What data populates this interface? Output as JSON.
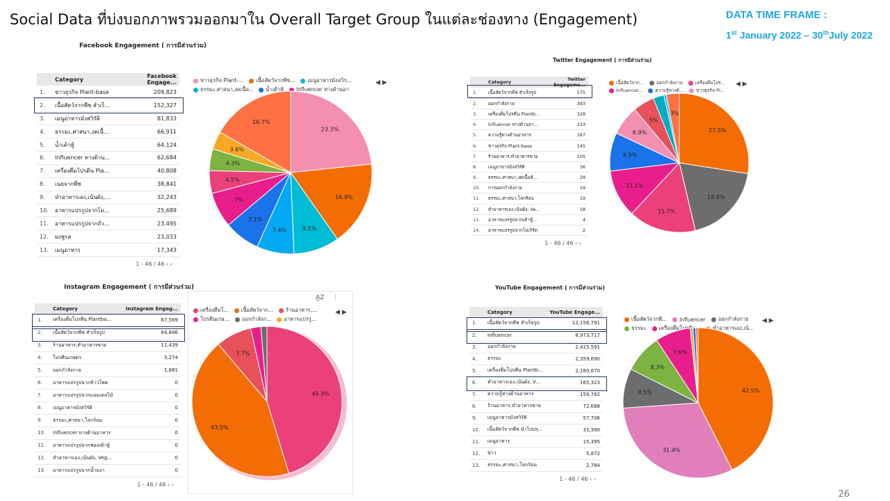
{
  "header": {
    "title": "Social Data ที่บ่งบอกภาพรวมออกมาใน Overall Target Group ในแต่ละช่องทาง (Engagement)",
    "time_frame_label": "DATA TIME FRAME :",
    "time_frame_start": "1",
    "time_frame_start_sup": "st",
    "time_frame_mid": " January 2022 – 30",
    "time_frame_end_sup": "th",
    "time_frame_end": "July 2022"
  },
  "page_number": "26",
  "chart_data": [
    {
      "id": "fb",
      "type": "pie",
      "title": "Facebook Engagement ( การมีส่วนร่วม)",
      "table_headers": [
        "Category",
        "Facebook Engage..."
      ],
      "table": [
        [
          "1.",
          "ข่าวธุรกิจ Plant-base",
          "209,823"
        ],
        [
          "2.",
          "เนื้อสัตว์จากพืช สำเร็จรูป",
          "152,327"
        ],
        [
          "3.",
          "เมนูอาหารมังสวิรัติ",
          "81,833"
        ],
        [
          "4.",
          "ธรรมะ,ศาสนา,งดเนื้อสั...",
          "66,911"
        ],
        [
          "5.",
          "น้ำเต้าหู้",
          "64,124"
        ],
        [
          "6.",
          "Influencer ทางด้านอา...",
          "62,684"
        ],
        [
          "7.",
          "เครื่องดื่มโปรตีน Plantb...",
          "40,808"
        ],
        [
          "8.",
          "เนยจากพืช",
          "38,841"
        ],
        [
          "9.",
          "ทำอาหารเอง,เน้นผัง, Ve...",
          "32,243"
        ],
        [
          "10.",
          "อาหารแปรรูปจากโยเกิร์ต",
          "25,689"
        ],
        [
          "11.",
          "อาหารแปรรูปจากถั่วลูกไก่",
          "23,495"
        ],
        [
          "12.",
          "ผงชูรส",
          "23,033"
        ],
        [
          "13.",
          "เมนูอาหาร",
          "17,343"
        ]
      ],
      "pager": "1 - 46 / 46",
      "highlight_rows": [
        1
      ],
      "legend": [
        "ข่าวธุรกิจ Plant-...",
        "เนื้อสัตว์จากพืช...",
        "เมนูอาหารมังสวิร...",
        "ธรรมะ,ศาสนา,งดเนื้อ...",
        "น้ำเต้าหู้",
        "Influencer ทางด้านอา..."
      ],
      "slices": [
        {
          "value": 23.3,
          "label": "23.3%",
          "color": "#f48fb1"
        },
        {
          "value": 16.9,
          "label": "16.9%",
          "color": "#f46d04"
        },
        {
          "value": 9.1,
          "label": "9.1%",
          "color": "#00bcd4"
        },
        {
          "value": 7.4,
          "label": "7.4%",
          "color": "#03a9f4"
        },
        {
          "value": 7.1,
          "label": "7.1%",
          "color": "#1a73e8"
        },
        {
          "value": 7.0,
          "label": "7%",
          "color": "#e91e8c"
        },
        {
          "value": 4.5,
          "label": "4.5%",
          "color": "#ec407a"
        },
        {
          "value": 4.3,
          "label": "4.3%",
          "color": "#7cb342"
        },
        {
          "value": 3.6,
          "label": "3.6%",
          "color": "#f9a825"
        },
        {
          "value": 16.7,
          "label": "16.7%",
          "color": "#ff7043"
        }
      ]
    },
    {
      "id": "tw",
      "type": "pie",
      "title": "Twitter  Engagement ( การมีส่วนร่วม)",
      "table_headers": [
        "Category",
        "Twitter Engageme..."
      ],
      "table": [
        [
          "1.",
          "เนื้อสัตว์จากพืช สำเร็จรูป",
          "575"
        ],
        [
          "2.",
          "ออกกำลังกาย",
          "393"
        ],
        [
          "3.",
          "เครื่องดื่มโปรตีน Plantb...",
          "328"
        ],
        [
          "4.",
          "Influencer ทางด้านอา...",
          "233"
        ],
        [
          "5.",
          "ความรู้ทางด้านอาหาร",
          "187"
        ],
        [
          "6.",
          "ข่าวธุรกิจ Plant-base",
          "145"
        ],
        [
          "7.",
          "ร้านอาหาร,ทำอาหารขาย",
          "105"
        ],
        [
          "8.",
          "เมนูอาหารมังสวิรัติ",
          "36"
        ],
        [
          "9.",
          "ธรรมะ,ศาสนา,งดเนื้อสั...",
          "29"
        ],
        [
          "10.",
          "การออกกำลังกาย",
          "19"
        ],
        [
          "11.",
          "ธรรมะ,ศาสนา,โลกร้อน",
          "19"
        ],
        [
          "12.",
          "ทำอาหารเอง,เน้นผัง, Ve...",
          "18"
        ],
        [
          "13.",
          "อาหารแปรรูปจากเต้าหู้...",
          "4"
        ],
        [
          "14.",
          "อาหารแปรรูปจากโยเกิร์ต",
          "2"
        ]
      ],
      "pager": "1 - 46 / 46",
      "highlight_rows": [
        0
      ],
      "legend": [
        "เนื้อสัตว์จาก...",
        "ออกกำลังกาย",
        "เครื่องดื่มโปร...",
        "Influencer...",
        "ความรู้ทางด้...",
        "ข่าวธุรกิจ Pl..."
      ],
      "slices": [
        {
          "value": 27.5,
          "label": "27.5%",
          "color": "#f46d04"
        },
        {
          "value": 18.8,
          "label": "18.8%",
          "color": "#6d6d6d"
        },
        {
          "value": 15.7,
          "label": "15.7%",
          "color": "#ec407a"
        },
        {
          "value": 11.1,
          "label": "11.1%",
          "color": "#e91e8c"
        },
        {
          "value": 8.9,
          "label": "8.9%",
          "color": "#1a73e8"
        },
        {
          "value": 6.9,
          "label": "6.9%",
          "color": "#f48fb1"
        },
        {
          "value": 5.0,
          "label": "5%",
          "color": "#e8505b"
        },
        {
          "value": 2.5,
          "label": "",
          "color": "#00acc1"
        },
        {
          "value": 0.6,
          "label": "",
          "color": "#29b6f6"
        },
        {
          "value": 3.0,
          "label": "3%",
          "color": "#ff7043"
        }
      ]
    },
    {
      "id": "ig",
      "type": "pie",
      "title": "Instagram Engagement ( การมีส่วนร่วม)",
      "table_headers": [
        "Category",
        "Instagram Engag..."
      ],
      "table": [
        [
          "1.",
          "เครื่องดื่มโปรตีน Plantba...",
          "67,569"
        ],
        [
          "2.",
          "เนื้อสัตว์จากพืช สำเร็จรูป",
          "64,846"
        ],
        [
          "3.",
          "ร้านอาหาร,ทำอาหารขาย",
          "11,439"
        ],
        [
          "4.",
          "โปรตีนเกษตร",
          "3,274"
        ],
        [
          "5.",
          "ออกกำลังกาย",
          "1,881"
        ],
        [
          "6.",
          "อาหารแปรรูปจากข้าวโพด",
          "0"
        ],
        [
          "7.",
          "อาหารแปรรูปจากแอมเดลไม้",
          "0"
        ],
        [
          "8.",
          "เมนูอาหารมังสวิรัติ",
          "0"
        ],
        [
          "9.",
          "ธรรมะ,ศาสนา,โลกร้อน",
          "0"
        ],
        [
          "10.",
          "Influencer ทางด้านอาหาร",
          "0"
        ],
        [
          "11.",
          "อาหารแปรรูปจากฟองเต้าหู้",
          "0"
        ],
        [
          "12.",
          "ทำอาหารเอง,เน้นผัง, Veg...",
          "0"
        ],
        [
          "13.",
          "อาหารแปรรูปจากน้ำมงา",
          "0"
        ]
      ],
      "pager": "1 - 46 / 46",
      "highlight_rows": [
        0,
        1
      ],
      "legend": [
        "เครื่องดื่มโ...",
        "เนื้อสัตว์จาก...",
        "ร้านอาหาร,...",
        "โปรตีนเกษ...",
        "ออกกำลังก...",
        "อาหารแปรรู..."
      ],
      "legend_colors": [
        "#ec407a",
        "#f46d04",
        "#e8505b",
        "#e91e8c",
        "#6d6d6d",
        "#f9a825"
      ],
      "slices": [
        {
          "value": 45.3,
          "label": "45.3%",
          "color": "#ec407a"
        },
        {
          "value": 43.5,
          "label": "43.5%",
          "color": "#f46d04"
        },
        {
          "value": 7.7,
          "label": "7.7%",
          "color": "#e8505b"
        },
        {
          "value": 2.2,
          "label": "",
          "color": "#e91e8c"
        },
        {
          "value": 1.3,
          "label": "",
          "color": "#6d6d6d"
        }
      ]
    },
    {
      "id": "yt",
      "type": "pie",
      "title": "YouTube Engagement ( การมีส่วนร่วม)",
      "table_headers": [
        "Category",
        "YouTube Engage..."
      ],
      "table": [
        [
          "1.",
          "เนื้อสัตว์จากพืช สำเร็จรูป",
          "12,156,791"
        ],
        [
          "2.",
          "Influencer",
          "8,973,717"
        ],
        [
          "3.",
          "ออกกำลังกาย",
          "2,415,591"
        ],
        [
          "4.",
          "ธรรมะ",
          "2,359,690"
        ],
        [
          "5.",
          "เครื่องดื่มโปรตีน Plantba...",
          "2,160,670"
        ],
        [
          "6.",
          "ทำอาหารเอง,เน้นผัง, Veg...",
          "165,323"
        ],
        [
          "7.",
          "ความรู้ทางด้านอาหาร",
          "159,782"
        ],
        [
          "8.",
          "ร้านอาหาร,ทำอาหารขาย",
          "72,688"
        ],
        [
          "9.",
          "เมนูอาหารมังสวิรัติ",
          "57,706"
        ],
        [
          "10.",
          "เนื้อสัตว์จากพืช นำไปปรุ...",
          "31,390"
        ],
        [
          "11.",
          "เมนูอาหาร",
          "15,395"
        ],
        [
          "12.",
          "ข่าว",
          "5,872"
        ],
        [
          "13.",
          "ธรรมะ,ศาสนา,โลกร้อน",
          "2,784"
        ]
      ],
      "pager": "1 - 46 / 46",
      "highlight_rows": [
        0,
        1,
        5
      ],
      "legend": [
        "เนื้อสัตว์จากพื...",
        "Influencer",
        "ออกกำลังกาย",
        "ธรรมะ",
        "เครื่องดื่มโปรตีน...",
        "ทำอาหารเอง,เน้..."
      ],
      "legend_colors": [
        "#f46d04",
        "#e17fbd",
        "#6d6d6d",
        "#7cb342",
        "#e91e8c",
        "#f9a825"
      ],
      "slices": [
        {
          "value": 42.5,
          "label": "42.5%",
          "color": "#f46d04"
        },
        {
          "value": 31.4,
          "label": "31.4%",
          "color": "#e17fbd"
        },
        {
          "value": 8.5,
          "label": "8.5%",
          "color": "#6d6d6d"
        },
        {
          "value": 8.3,
          "label": "8.3%",
          "color": "#7cb342"
        },
        {
          "value": 7.6,
          "label": "7.6%",
          "color": "#e91e8c"
        },
        {
          "value": 0.6,
          "label": "",
          "color": "#f9a825"
        },
        {
          "value": 0.6,
          "label": "",
          "color": "#1a73e8"
        },
        {
          "value": 0.5,
          "label": "",
          "color": "#ff7043"
        }
      ]
    }
  ]
}
